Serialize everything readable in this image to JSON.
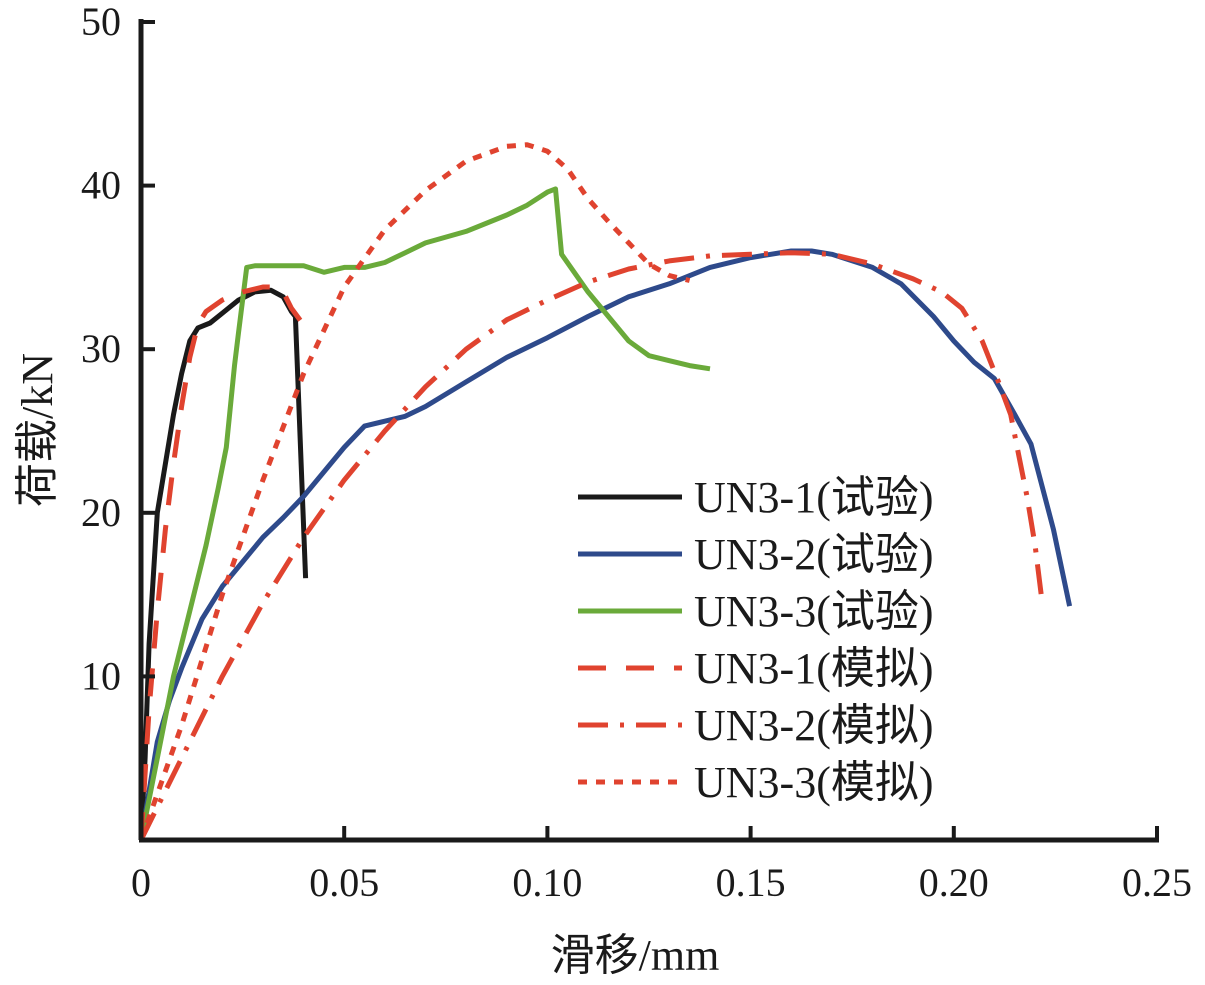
{
  "chart_data": {
    "type": "line",
    "xlabel": "滑移/mm",
    "ylabel": "荷载/kN",
    "xlim": [
      0,
      0.25
    ],
    "ylim": [
      0,
      50
    ],
    "grid": false,
    "legend_position": "lower-right",
    "x_ticks": [
      {
        "value": 0,
        "label": "0"
      },
      {
        "value": 0.05,
        "label": "0.05"
      },
      {
        "value": 0.1,
        "label": "0.10"
      },
      {
        "value": 0.15,
        "label": "0.15"
      },
      {
        "value": 0.2,
        "label": "0.20"
      },
      {
        "value": 0.25,
        "label": "0.25"
      }
    ],
    "y_ticks": [
      {
        "value": 10,
        "label": "10"
      },
      {
        "value": 20,
        "label": "20"
      },
      {
        "value": 30,
        "label": "30"
      },
      {
        "value": 40,
        "label": "40"
      },
      {
        "value": 50,
        "label": "50"
      }
    ],
    "series": [
      {
        "name": "UN3-1(试验)",
        "color": "#1a1a1a",
        "dash": "solid",
        "points": [
          [
            0,
            0
          ],
          [
            0.001,
            5
          ],
          [
            0.002,
            12
          ],
          [
            0.003,
            16
          ],
          [
            0.004,
            20
          ],
          [
            0.006,
            23
          ],
          [
            0.008,
            26
          ],
          [
            0.01,
            28.5
          ],
          [
            0.012,
            30.5
          ],
          [
            0.014,
            31.3
          ],
          [
            0.017,
            31.6
          ],
          [
            0.02,
            32.2
          ],
          [
            0.024,
            33
          ],
          [
            0.028,
            33.5
          ],
          [
            0.032,
            33.6
          ],
          [
            0.035,
            33.2
          ],
          [
            0.037,
            32.3
          ],
          [
            0.038,
            32.0
          ],
          [
            0.0405,
            16
          ]
        ]
      },
      {
        "name": "UN3-2(试验)",
        "color": "#2e4a8b",
        "dash": "solid",
        "points": [
          [
            0,
            0
          ],
          [
            0.002,
            3
          ],
          [
            0.004,
            6
          ],
          [
            0.007,
            8.5
          ],
          [
            0.01,
            10.5
          ],
          [
            0.015,
            13.5
          ],
          [
            0.02,
            15.5
          ],
          [
            0.025,
            17
          ],
          [
            0.03,
            18.5
          ],
          [
            0.035,
            19.7
          ],
          [
            0.04,
            21
          ],
          [
            0.045,
            22.5
          ],
          [
            0.05,
            24
          ],
          [
            0.055,
            25.3
          ],
          [
            0.06,
            25.6
          ],
          [
            0.065,
            25.9
          ],
          [
            0.07,
            26.5
          ],
          [
            0.08,
            28
          ],
          [
            0.09,
            29.5
          ],
          [
            0.1,
            30.7
          ],
          [
            0.11,
            32
          ],
          [
            0.12,
            33.2
          ],
          [
            0.13,
            34
          ],
          [
            0.14,
            35
          ],
          [
            0.15,
            35.6
          ],
          [
            0.16,
            36
          ],
          [
            0.165,
            36
          ],
          [
            0.17,
            35.8
          ],
          [
            0.18,
            35
          ],
          [
            0.187,
            34
          ],
          [
            0.195,
            32
          ],
          [
            0.2,
            30.5
          ],
          [
            0.205,
            29.2
          ],
          [
            0.21,
            28.2
          ],
          [
            0.215,
            26
          ],
          [
            0.219,
            24.2
          ],
          [
            0.2245,
            19
          ],
          [
            0.2285,
            14.3
          ]
        ]
      },
      {
        "name": "UN3-3(试验)",
        "color": "#6aaa3a",
        "dash": "solid",
        "points": [
          [
            0,
            0
          ],
          [
            0.004,
            5
          ],
          [
            0.008,
            10
          ],
          [
            0.012,
            14
          ],
          [
            0.016,
            18
          ],
          [
            0.019,
            21.5
          ],
          [
            0.021,
            24
          ],
          [
            0.022,
            26.5
          ],
          [
            0.023,
            29
          ],
          [
            0.024,
            31
          ],
          [
            0.025,
            33
          ],
          [
            0.026,
            35
          ],
          [
            0.028,
            35.1
          ],
          [
            0.035,
            35.1
          ],
          [
            0.04,
            35.1
          ],
          [
            0.045,
            34.7
          ],
          [
            0.05,
            35
          ],
          [
            0.055,
            35
          ],
          [
            0.06,
            35.3
          ],
          [
            0.065,
            35.9
          ],
          [
            0.07,
            36.5
          ],
          [
            0.08,
            37.2
          ],
          [
            0.09,
            38.2
          ],
          [
            0.095,
            38.8
          ],
          [
            0.1,
            39.6
          ],
          [
            0.102,
            39.8
          ],
          [
            0.1035,
            35.8
          ],
          [
            0.11,
            33.5
          ],
          [
            0.115,
            32
          ],
          [
            0.12,
            30.5
          ],
          [
            0.125,
            29.6
          ],
          [
            0.13,
            29.3
          ],
          [
            0.135,
            29
          ],
          [
            0.14,
            28.8
          ]
        ]
      },
      {
        "name": "UN3-1(模拟)",
        "color": "#e0432f",
        "dash": "long-dash",
        "points": [
          [
            0,
            0
          ],
          [
            0.002,
            8
          ],
          [
            0.004,
            14
          ],
          [
            0.006,
            19
          ],
          [
            0.008,
            23
          ],
          [
            0.01,
            26.5
          ],
          [
            0.012,
            29.5
          ],
          [
            0.014,
            31.5
          ],
          [
            0.016,
            32.3
          ],
          [
            0.02,
            33
          ],
          [
            0.025,
            33.5
          ],
          [
            0.03,
            33.8
          ],
          [
            0.033,
            33.8
          ],
          [
            0.035,
            33.5
          ],
          [
            0.037,
            32.5
          ],
          [
            0.04,
            31.5
          ]
        ]
      },
      {
        "name": "UN3-2(模拟)",
        "color": "#e0432f",
        "dash": "dash-dot",
        "points": [
          [
            0,
            0
          ],
          [
            0.01,
            5
          ],
          [
            0.02,
            10
          ],
          [
            0.03,
            14.5
          ],
          [
            0.04,
            18.5
          ],
          [
            0.05,
            22
          ],
          [
            0.06,
            25
          ],
          [
            0.07,
            27.7
          ],
          [
            0.08,
            30
          ],
          [
            0.09,
            31.8
          ],
          [
            0.1,
            33
          ],
          [
            0.11,
            34.1
          ],
          [
            0.12,
            34.9
          ],
          [
            0.13,
            35.4
          ],
          [
            0.14,
            35.7
          ],
          [
            0.15,
            35.8
          ],
          [
            0.16,
            35.9
          ],
          [
            0.17,
            35.8
          ],
          [
            0.18,
            35.2
          ],
          [
            0.19,
            34.3
          ],
          [
            0.197,
            33.5
          ],
          [
            0.202,
            32.5
          ],
          [
            0.207,
            30.5
          ],
          [
            0.211,
            28
          ],
          [
            0.214,
            26
          ],
          [
            0.216,
            23.5
          ],
          [
            0.218,
            21
          ],
          [
            0.22,
            18
          ],
          [
            0.2215,
            15
          ]
        ]
      },
      {
        "name": "UN3-3(模拟)",
        "color": "#e0432f",
        "dash": "dotted",
        "points": [
          [
            0,
            0
          ],
          [
            0.01,
            7
          ],
          [
            0.02,
            15
          ],
          [
            0.03,
            22
          ],
          [
            0.04,
            28.5
          ],
          [
            0.05,
            33.8
          ],
          [
            0.06,
            37.3
          ],
          [
            0.07,
            39.7
          ],
          [
            0.08,
            41.5
          ],
          [
            0.09,
            42.4
          ],
          [
            0.095,
            42.5
          ],
          [
            0.1,
            42.1
          ],
          [
            0.105,
            41
          ],
          [
            0.11,
            39.2
          ],
          [
            0.115,
            37.8
          ],
          [
            0.12,
            36.5
          ],
          [
            0.125,
            35.2
          ],
          [
            0.13,
            34.5
          ],
          [
            0.135,
            34.2
          ]
        ]
      }
    ]
  }
}
